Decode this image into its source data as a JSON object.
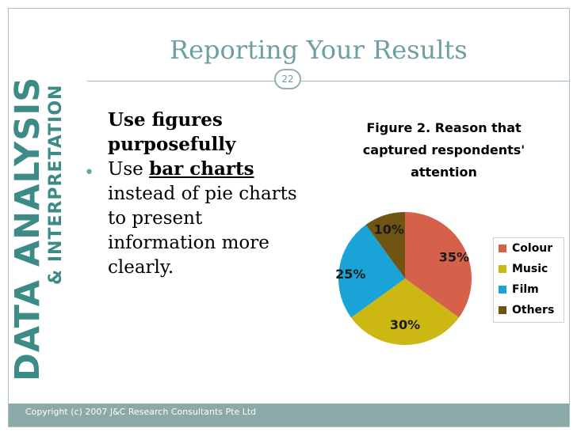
{
  "branding": {
    "main": "DATA ANALYSIS",
    "sub": "& INTERPRETATION",
    "color": "#3d8b86"
  },
  "slide": {
    "title": "Reporting Your Results",
    "page_number": "22"
  },
  "content": {
    "heading_line1": "Use figures",
    "heading_line2": "purposefully",
    "bullet_prefix": "Use ",
    "bullet_emphasis": "bar charts",
    "bullet_rest": "instead of pie charts to present information more clearly."
  },
  "chart_data": {
    "type": "pie",
    "title": "Figure 2.  Reason that captured respondents' attention",
    "categories": [
      "Colour",
      "Music",
      "Film",
      "Others"
    ],
    "values": [
      35,
      30,
      25,
      10
    ],
    "labels": [
      "35%",
      "30%",
      "25%",
      "10%"
    ],
    "colors": [
      "#d5614a",
      "#cdb713",
      "#1aa3d6",
      "#6f5413"
    ],
    "legend_position": "right"
  },
  "footer": {
    "text": "Copyright (c) 2007 J&C Research Consultants Pte Ltd"
  }
}
